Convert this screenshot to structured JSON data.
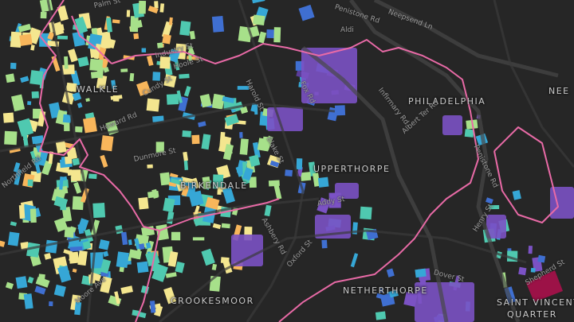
{
  "map": {
    "colors": {
      "background": "#262626",
      "road": "#3a3a3a",
      "major_road": "#474747",
      "boundary": "#e86aa6",
      "heat_scale": [
        "#5a3d9a",
        "#7b52c4",
        "#3f6fd1",
        "#36a7d6",
        "#4fc9b0",
        "#a7e08a",
        "#f4e68f",
        "#f8b65b"
      ],
      "highlight": "#9c1247"
    },
    "areas": [
      {
        "id": "walkley",
        "label": "WALKLE"
      },
      {
        "id": "philadelphia",
        "label": "PHILADELPHIA"
      },
      {
        "id": "upperthorpe",
        "label": "UPPERTHORPE"
      },
      {
        "id": "birkendale",
        "label": "BIRKENDALE"
      },
      {
        "id": "netherthorpe",
        "label": "NETHERTHORPE"
      },
      {
        "id": "crookesmoor",
        "label": "CROOKESMOOR"
      },
      {
        "id": "saint_vincent",
        "label": "SAINT VINCENT"
      },
      {
        "id": "quarter",
        "label": "QUARTER"
      },
      {
        "id": "nee",
        "label": "NEE"
      }
    ],
    "streets": [
      {
        "id": "palm_st",
        "label": "Palm St"
      },
      {
        "id": "neepsend_ln",
        "label": "Neepsend Ln"
      },
      {
        "id": "penistone_rd_top",
        "label": "Penistone Rd"
      },
      {
        "id": "aldi",
        "label": "Aldi"
      },
      {
        "id": "fox_rd",
        "label": "Fox Rd"
      },
      {
        "id": "harold_st",
        "label": "Harold St"
      },
      {
        "id": "infirmary_rd",
        "label": "Infirmary Rd"
      },
      {
        "id": "albert_ter_rd",
        "label": "Albert Ter Rd"
      },
      {
        "id": "penistone_rd_right",
        "label": "Penistone Rd"
      },
      {
        "id": "industry_st",
        "label": "Industry St"
      },
      {
        "id": "hoole_st",
        "label": "Hoole St"
      },
      {
        "id": "cundy_st",
        "label": "Cundy St"
      },
      {
        "id": "howard_rd",
        "label": "Howard Rd"
      },
      {
        "id": "dunmore_st",
        "label": "Dunmore St"
      },
      {
        "id": "blake_st",
        "label": "Blake St"
      },
      {
        "id": "northfield_rd",
        "label": "Northfield Rd"
      },
      {
        "id": "addy_st",
        "label": "Addy St"
      },
      {
        "id": "henry_st",
        "label": "Henry St"
      },
      {
        "id": "oxford_st",
        "label": "Oxford St"
      },
      {
        "id": "dover_st",
        "label": "Dover St"
      },
      {
        "id": "shepherd_st",
        "label": "Shepherd St"
      },
      {
        "id": "moore_ave",
        "label": "Moore Ave"
      },
      {
        "id": "ashbery_rd",
        "label": "Ashbery Rd"
      }
    ]
  }
}
